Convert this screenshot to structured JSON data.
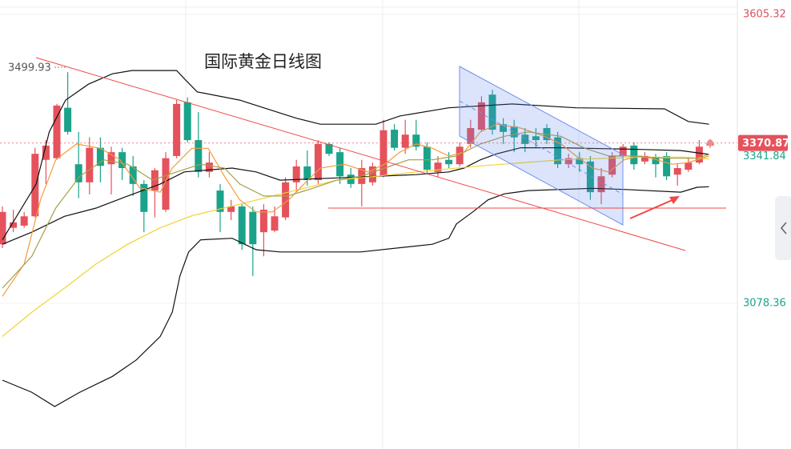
{
  "chart_data": {
    "type": "candlestick",
    "title": "国际黄金日线图",
    "ylim": [
      2812.5,
      3631.6
    ],
    "yticks": [
      3605.32,
      3078.36
    ],
    "grid": true,
    "up_color": "#e5525c",
    "down_color": "#1aa38a",
    "open": [
      3186,
      3216,
      3220,
      3237,
      3340,
      3343,
      3435,
      3332,
      3299,
      3362,
      3332,
      3354,
      3328,
      3296,
      3284,
      3249,
      3347,
      3445,
      3376,
      3318,
      3284,
      3245,
      3255,
      3245,
      3208,
      3211,
      3235,
      3299,
      3328,
      3303,
      3369,
      3354,
      3313,
      3296,
      3299,
      3310,
      3395,
      3362,
      3386,
      3364,
      3318,
      3340,
      3332,
      3369,
      3395,
      3459,
      3405,
      3401,
      3386,
      3383,
      3398,
      3381,
      3332,
      3343,
      3337,
      3281,
      3313,
      3347,
      3366,
      3337,
      3345,
      3347,
      3313,
      3322,
      3335,
      3366
    ],
    "high": [
      3255,
      3249,
      3245,
      3362,
      3376,
      3442,
      3499.93,
      3391,
      3381,
      3381,
      3364,
      3362,
      3347,
      3303,
      3325,
      3354,
      3449,
      3454,
      3427,
      3354,
      3296,
      3267,
      3259,
      3255,
      3259,
      3255,
      3308,
      3340,
      3357,
      3376,
      3372,
      3362,
      3325,
      3340,
      3335,
      3413,
      3405,
      3413,
      3413,
      3372,
      3347,
      3354,
      3372,
      3413,
      3456,
      3468,
      3416,
      3413,
      3398,
      3398,
      3405,
      3391,
      3351,
      3354,
      3347,
      3325,
      3354,
      3369,
      3372,
      3354,
      3351,
      3354,
      3332,
      3343,
      3376,
      3378
    ],
    "low": [
      3179,
      3208,
      3216,
      3235,
      3296,
      3340,
      3386,
      3270,
      3277,
      3299,
      3277,
      3303,
      3274,
      3208,
      3235,
      3245,
      3343,
      3372,
      3308,
      3308,
      3208,
      3230,
      3176,
      3128,
      3164,
      3208,
      3230,
      3281,
      3293,
      3296,
      3347,
      3296,
      3289,
      3255,
      3293,
      3308,
      3357,
      3351,
      3357,
      3313,
      3308,
      3325,
      3328,
      3362,
      3391,
      3386,
      3369,
      3354,
      3354,
      3362,
      3369,
      3325,
      3325,
      3318,
      3267,
      3259,
      3308,
      3340,
      3322,
      3332,
      3308,
      3303,
      3293,
      3318,
      3332,
      3362
    ],
    "close": [
      3245,
      3226,
      3237,
      3351,
      3366,
      3439,
      3391,
      3299,
      3362,
      3329,
      3354,
      3325,
      3296,
      3245,
      3321,
      3343,
      3442,
      3376,
      3318,
      3335,
      3245,
      3255,
      3186,
      3186,
      3249,
      3237,
      3299,
      3328,
      3303,
      3369,
      3351,
      3310,
      3296,
      3325,
      3328,
      3394,
      3362,
      3386,
      3364,
      3322,
      3335,
      3332,
      3364,
      3398,
      3445,
      3395,
      3391,
      3381,
      3369,
      3376,
      3376,
      3332,
      3343,
      3332,
      3281,
      3310,
      3347,
      3364,
      3332,
      3347,
      3332,
      3310,
      3325,
      3335,
      3364,
      3370.87
    ],
    "overlays": [
      {
        "color": "#111111",
        "x": [
          0,
          3.1,
          4.3,
          5.8,
          7.9,
          10.1,
          11.9,
          16.0,
          16.8,
          17.9,
          21.8,
          24.0,
          27.0,
          29.2,
          34.3,
          36.5,
          41.0,
          46.8,
          52.7,
          60.8,
          63.0,
          64.9
        ],
        "values": [
          3194,
          3296,
          3391,
          3449,
          3478,
          3497,
          3503,
          3503,
          3486,
          3464,
          3449,
          3435,
          3416,
          3405,
          3405,
          3420,
          3435,
          3442,
          3435,
          3433,
          3410,
          3405
        ]
      },
      {
        "color": "#111111",
        "x": [
          0,
          2.7,
          5.7,
          8.6,
          11.5,
          14.5,
          16.7,
          21.1,
          23.3,
          25.5,
          30.7,
          38.0,
          41.0,
          42.4,
          43.9,
          45.4,
          47.6,
          51.3,
          58.6,
          62.3,
          64.9
        ],
        "values": [
          3186,
          3208,
          3237,
          3252,
          3274,
          3296,
          3318,
          3325,
          3318,
          3303,
          3307,
          3313,
          3318,
          3325,
          3340,
          3351,
          3362,
          3362,
          3359,
          3357,
          3350
        ]
      },
      {
        "color": "#111111",
        "x": [
          0,
          2.7,
          4.8,
          7.1,
          10.1,
          12.3,
          14.5,
          15.6,
          16.3,
          17.1,
          18.2,
          21.1,
          23.3,
          25.5,
          32.9,
          39.5,
          41.0,
          41.7,
          43.2,
          44.6,
          46.1,
          48.3,
          54.2,
          57.1,
          62.3,
          63.8,
          64.9
        ],
        "values": [
          2938,
          2916,
          2890,
          2916,
          2945,
          2975,
          3018,
          3062,
          3128,
          3172,
          3194,
          3197,
          3176,
          3172,
          3172,
          3186,
          3197,
          3223,
          3245,
          3267,
          3278,
          3284,
          3288,
          3286,
          3281,
          3290,
          3291
        ]
      },
      {
        "color": "#f2d230",
        "x": [
          0,
          2.7,
          5.7,
          8.6,
          11.5,
          14.5,
          17.4,
          21.8,
          24.8,
          27.7,
          30.7,
          34.3,
          38.0,
          43.9,
          51.3,
          58.6,
          62.5,
          64.9
        ],
        "values": [
          3018,
          3062,
          3106,
          3150,
          3186,
          3216,
          3238,
          3259,
          3274,
          3288,
          3303,
          3310,
          3318,
          3329,
          3340,
          3345,
          3345,
          3341.84
        ]
      },
      {
        "color": "#f59a3c",
        "x": [
          0,
          2.0,
          3.5,
          4.9,
          6.8,
          9.0,
          10.8,
          12.6,
          14.5,
          15.6,
          17.4,
          18.9,
          20.4,
          21.8,
          23.3,
          24.8,
          26.3,
          27.7,
          29.2,
          31.4,
          33.6,
          35.1,
          36.5,
          38.0,
          39.5,
          41.0,
          42.4,
          43.9,
          45.4,
          47.6,
          49.8,
          51.3,
          52.7,
          54.2,
          55.7,
          57.1,
          58.6,
          60.1,
          61.5,
          63.0,
          64.9
        ],
        "values": [
          3091,
          3150,
          3267,
          3340,
          3369,
          3361,
          3340,
          3289,
          3281,
          3325,
          3361,
          3361,
          3310,
          3267,
          3245,
          3245,
          3267,
          3296,
          3325,
          3332,
          3318,
          3332,
          3354,
          3369,
          3361,
          3347,
          3354,
          3391,
          3405,
          3398,
          3383,
          3369,
          3347,
          3325,
          3318,
          3340,
          3347,
          3340,
          3332,
          3335,
          3347
        ]
      },
      {
        "color": "#a3a04a",
        "x": [
          0,
          2.7,
          4.9,
          7.1,
          9.3,
          11.5,
          13.8,
          16.0,
          18.2,
          20.4,
          21.8,
          24.0,
          26.2,
          28.5,
          30.7,
          32.9,
          35.1,
          37.3,
          39.5,
          41.7,
          43.9,
          46.1,
          48.3,
          51.3,
          53.5,
          55.7,
          57.9,
          60.8,
          63.8,
          64.9
        ],
        "values": [
          3106,
          3164,
          3252,
          3310,
          3340,
          3332,
          3303,
          3318,
          3332,
          3325,
          3296,
          3274,
          3274,
          3288,
          3303,
          3310,
          3325,
          3340,
          3340,
          3347,
          3369,
          3383,
          3391,
          3383,
          3361,
          3347,
          3347,
          3343,
          3343,
          3350
        ]
      }
    ]
  }
}
